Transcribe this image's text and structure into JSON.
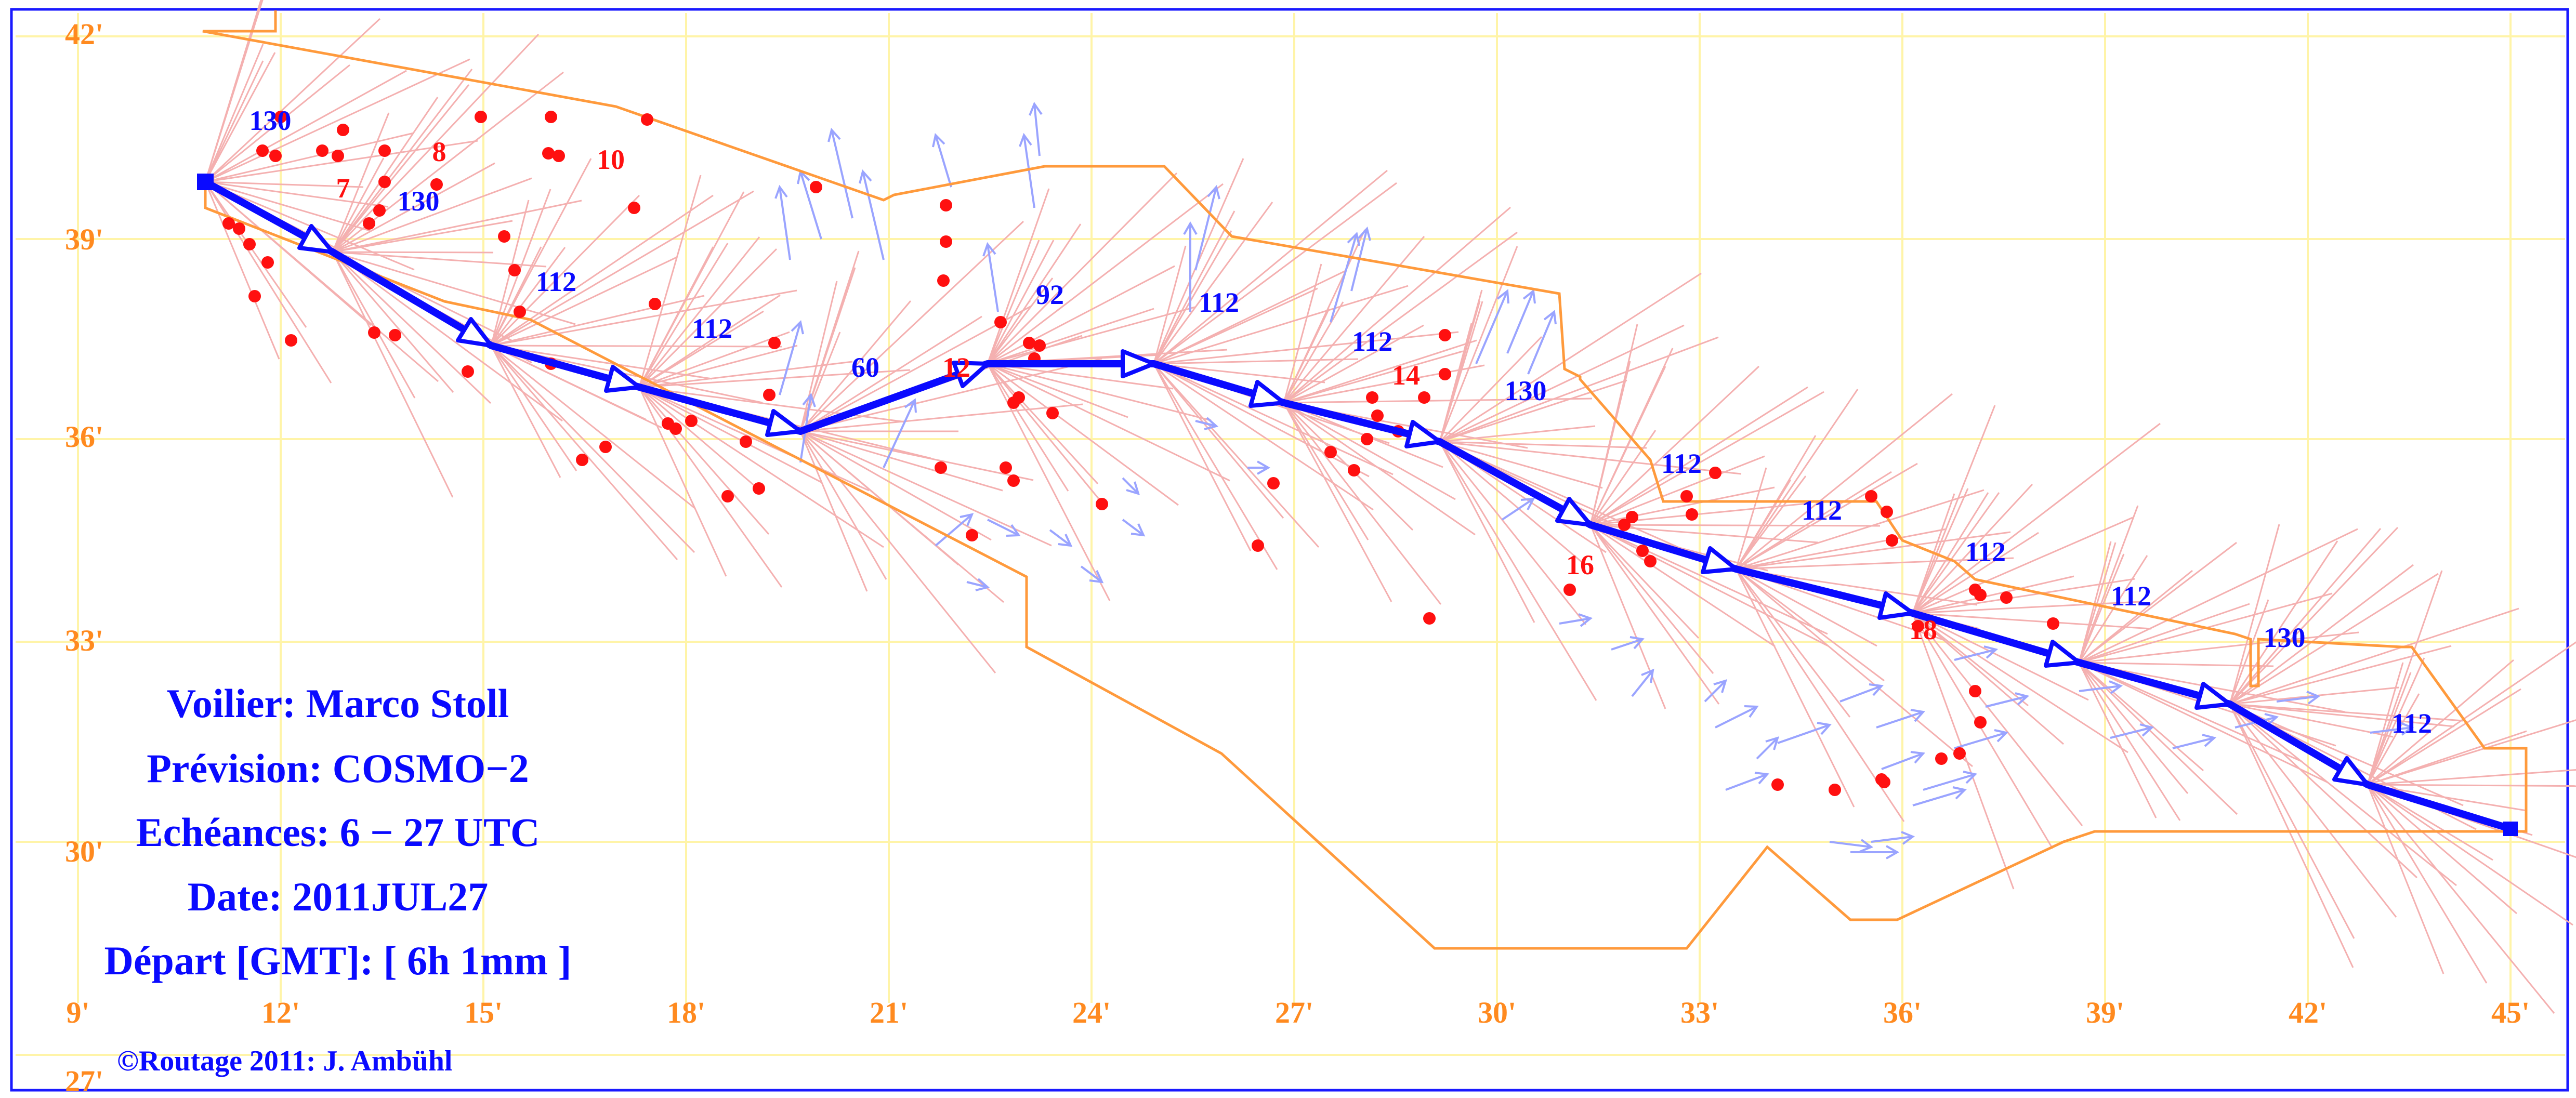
{
  "map": {
    "lat_labels": [
      "42'",
      "39'",
      "36'",
      "33'",
      "30'",
      "27'"
    ],
    "lon_labels": [
      "9'",
      "12'",
      "15'",
      "18'",
      "21'",
      "24'",
      "27'",
      "30'",
      "33'",
      "36'",
      "39'",
      "42'",
      "45'"
    ],
    "route_numbers": [
      "130",
      "130",
      "112",
      "112",
      "60",
      "92",
      "112",
      "112",
      "130",
      "112",
      "112",
      "112",
      "112",
      "130",
      "112"
    ],
    "red_labels": [
      "7",
      "8",
      "10",
      "12",
      "14",
      "16",
      "18"
    ],
    "colors": {
      "frame": "#1a1aff",
      "grid": "#fff4a8",
      "axis_text": "#ff8a1f",
      "coastline": "#ff9a3c",
      "route": "#0a0aff",
      "isochrone": "#f4b0b0",
      "wind_arrows": "#9aa4ff",
      "red_points": "#ff1010"
    }
  },
  "info": {
    "voilier": "Voilier: Marco Stoll",
    "prevision": "Prévision: COSMO−2",
    "echeances": "Echéances: 6 − 27 UTC",
    "date": "Date: 2011JUL27",
    "depart": "Départ [GMT]: [ 6h 1mm ]"
  },
  "credit": "©Routage 2011: J. Ambühl"
}
